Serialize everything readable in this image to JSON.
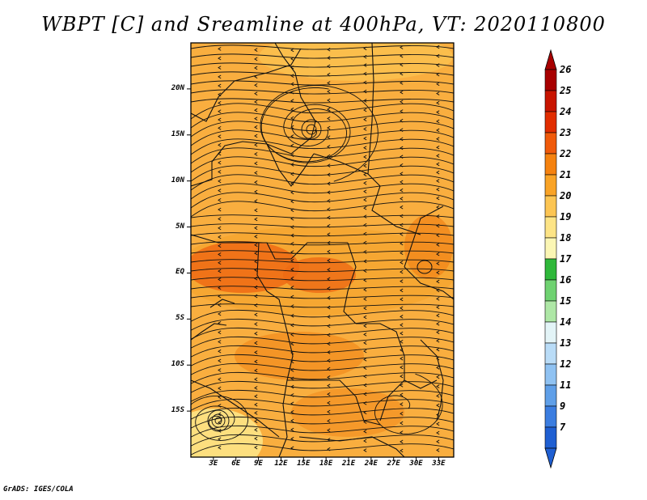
{
  "title": "WBPT [C] and Sreamline at 400hPa, VT: 2020110800",
  "footer": "GrADS: IGES/COLA",
  "map": {
    "lat_range": [
      -20,
      25
    ],
    "lon_range": [
      0,
      35
    ],
    "lat_ticks": [
      {
        "value": 20,
        "label": "20N"
      },
      {
        "value": 15,
        "label": "15N"
      },
      {
        "value": 10,
        "label": "10N"
      },
      {
        "value": 5,
        "label": "5N"
      },
      {
        "value": 0,
        "label": "EQ"
      },
      {
        "value": -5,
        "label": "5S"
      },
      {
        "value": -10,
        "label": "10S"
      },
      {
        "value": -15,
        "label": "15S"
      }
    ],
    "lon_ticks": [
      {
        "value": 3,
        "label": "3E"
      },
      {
        "value": 6,
        "label": "6E"
      },
      {
        "value": 9,
        "label": "9E"
      },
      {
        "value": 12,
        "label": "12E"
      },
      {
        "value": 15,
        "label": "15E"
      },
      {
        "value": 18,
        "label": "18E"
      },
      {
        "value": 21,
        "label": "21E"
      },
      {
        "value": 24,
        "label": "24E"
      },
      {
        "value": 27,
        "label": "27E"
      },
      {
        "value": 30,
        "label": "30E"
      },
      {
        "value": 33,
        "label": "33E"
      }
    ],
    "field_colors": {
      "base": "#f9ae3f",
      "light": "#fcd06a",
      "dark": "#f28a1c",
      "hot": "#ee6a14"
    }
  },
  "colorbar": {
    "labels": [
      "26",
      "25",
      "24",
      "23",
      "22",
      "21",
      "20",
      "19",
      "18",
      "17",
      "16",
      "15",
      "14",
      "13",
      "12",
      "11",
      "9",
      "7"
    ],
    "colors": [
      "#a80000",
      "#c81400",
      "#e12d00",
      "#f05a0a",
      "#f5820f",
      "#f9a326",
      "#fcc553",
      "#fde486",
      "#fbf6b4",
      "#2fb83a",
      "#6fd271",
      "#aee7a6",
      "#e3f4f7",
      "#b9dcf7",
      "#8fc2f2",
      "#5f9fe8",
      "#3b7de0",
      "#1f5fd2"
    ],
    "arrow_top": "#a80000",
    "arrow_bottom": "#1f5fd2"
  }
}
